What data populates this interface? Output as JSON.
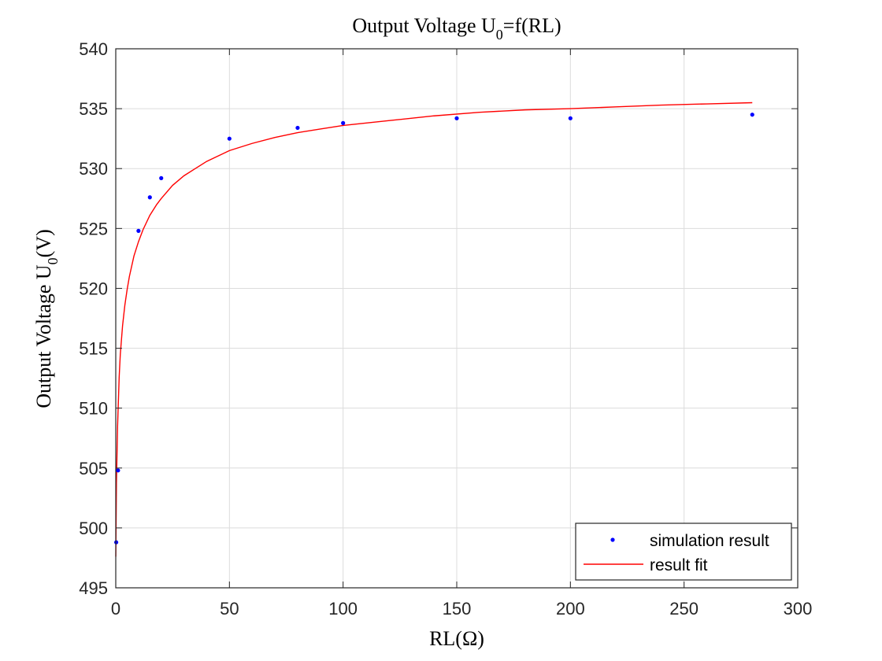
{
  "chart_data": {
    "type": "scatter",
    "title": {
      "main": "Output Voltage U",
      "sub": "0",
      "suffix": "=f(RL)"
    },
    "xlabel": "RL(Ω)",
    "ylabel": {
      "main": "Output Voltage U",
      "sub": "0",
      "suffix": "(V)"
    },
    "xlim": [
      0,
      300
    ],
    "ylim": [
      495,
      540
    ],
    "xticks": [
      0,
      50,
      100,
      150,
      200,
      250,
      300
    ],
    "yticks": [
      495,
      500,
      505,
      510,
      515,
      520,
      525,
      530,
      535,
      540
    ],
    "grid": true,
    "legend_position": "bottom-right",
    "series": [
      {
        "name": "simulation result",
        "kind": "markers",
        "color": "#0000ff",
        "x": [
          0.2,
          1,
          10,
          15,
          20,
          50,
          80,
          100,
          150,
          200,
          280
        ],
        "y": [
          498.8,
          504.8,
          524.8,
          527.6,
          529.2,
          532.5,
          533.4,
          533.8,
          534.2,
          534.2,
          534.5
        ]
      },
      {
        "name": "result fit",
        "kind": "line",
        "color": "#ff0000",
        "x": [
          0.02,
          0.3,
          0.8,
          1.5,
          2,
          3,
          4,
          5,
          6,
          8,
          10,
          12,
          15,
          18,
          20,
          25,
          30,
          35,
          40,
          50,
          60,
          70,
          80,
          90,
          100,
          120,
          140,
          160,
          180,
          200,
          220,
          240,
          260,
          280
        ],
        "y": [
          497.6,
          503.8,
          508.5,
          512.6,
          514.5,
          516.9,
          518.6,
          519.9,
          521.0,
          522.7,
          523.9,
          524.9,
          526.1,
          527.0,
          527.5,
          528.6,
          529.4,
          530.0,
          530.6,
          531.5,
          532.1,
          532.6,
          533.0,
          533.3,
          533.6,
          534.0,
          534.4,
          534.7,
          534.9,
          535.0,
          535.15,
          535.3,
          535.4,
          535.5
        ]
      }
    ]
  }
}
